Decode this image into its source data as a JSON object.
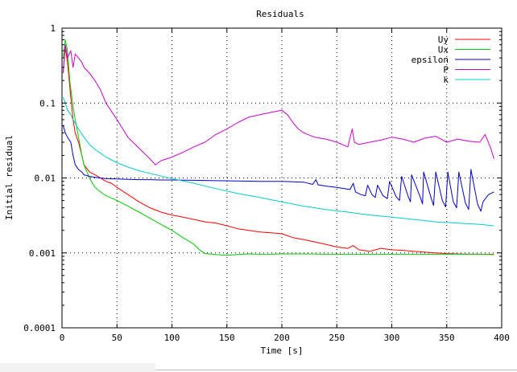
{
  "chart_data": {
    "type": "line",
    "title": "Residuals",
    "xlabel": "Time [s]",
    "ylabel": "Initial residual",
    "yscale": "log",
    "xlim": [
      0,
      400
    ],
    "ylim": [
      0.0001,
      1
    ],
    "xticks": [
      0,
      50,
      100,
      150,
      200,
      250,
      300,
      350,
      400
    ],
    "xtick_labels": [
      "0",
      "50",
      "100",
      "150",
      "200",
      "250",
      "300",
      "350",
      "400"
    ],
    "yticks": [
      1,
      0.1,
      0.01,
      0.001,
      0.0001
    ],
    "ytick_labels": [
      "1",
      "0.1",
      "0.01",
      "0.001",
      "0.0001"
    ],
    "grid": true,
    "legend_position": "top-right",
    "series": [
      {
        "name": "Uy",
        "color": "#ff0000",
        "x": [
          1,
          3,
          5,
          8,
          10,
          12,
          15,
          18,
          20,
          25,
          30,
          35,
          40,
          45,
          50,
          60,
          70,
          80,
          90,
          100,
          110,
          120,
          130,
          140,
          150,
          160,
          170,
          180,
          190,
          200,
          210,
          220,
          230,
          240,
          250,
          260,
          265,
          270,
          280,
          290,
          300,
          310,
          320,
          330,
          340,
          350,
          360,
          370,
          380,
          390,
          393
        ],
        "y": [
          0.25,
          0.55,
          0.35,
          0.12,
          0.06,
          0.04,
          0.03,
          0.02,
          0.015,
          0.012,
          0.011,
          0.01,
          0.009,
          0.0085,
          0.0075,
          0.006,
          0.0048,
          0.004,
          0.0035,
          0.0032,
          0.003,
          0.0028,
          0.0026,
          0.0025,
          0.0023,
          0.0021,
          0.002,
          0.0019,
          0.00185,
          0.0018,
          0.0016,
          0.0015,
          0.0014,
          0.0013,
          0.0012,
          0.00115,
          0.00125,
          0.0011,
          0.00105,
          0.00115,
          0.0011,
          0.00108,
          0.00105,
          0.00102,
          0.001,
          0.00098,
          0.00097,
          0.00096,
          0.00096,
          0.00095,
          0.00095
        ]
      },
      {
        "name": "Ux",
        "color": "#00cc00",
        "x": [
          1,
          3,
          5,
          7,
          10,
          12,
          15,
          18,
          20,
          25,
          30,
          35,
          40,
          50,
          60,
          70,
          80,
          90,
          100,
          110,
          120,
          125,
          130,
          140,
          150,
          160,
          170,
          180,
          190,
          200,
          220,
          240,
          260,
          280,
          300,
          320,
          340,
          360,
          380,
          393
        ],
        "y": [
          0.4,
          0.7,
          0.5,
          0.2,
          0.09,
          0.06,
          0.035,
          0.02,
          0.015,
          0.01,
          0.0075,
          0.0065,
          0.0058,
          0.005,
          0.0042,
          0.0035,
          0.0029,
          0.0024,
          0.002,
          0.0016,
          0.0013,
          0.0011,
          0.00098,
          0.00095,
          0.00093,
          0.00095,
          0.00097,
          0.00096,
          0.00096,
          0.00097,
          0.00097,
          0.00096,
          0.00096,
          0.00096,
          0.00096,
          0.00096,
          0.00096,
          0.00096,
          0.00096,
          0.00096
        ]
      },
      {
        "name": "epsilon",
        "color": "#0000cc",
        "x": [
          1,
          3,
          5,
          8,
          10,
          12,
          15,
          18,
          20,
          25,
          30,
          35,
          40,
          50,
          60,
          70,
          80,
          90,
          100,
          120,
          140,
          160,
          180,
          200,
          210,
          220,
          228,
          231,
          233,
          240,
          250,
          262,
          265,
          267,
          272,
          276,
          278,
          282,
          285,
          287,
          292,
          296,
          298,
          304,
          307,
          309,
          315,
          317,
          318,
          326,
          328,
          329,
          336,
          338,
          340,
          346,
          349,
          351,
          356,
          359,
          361,
          367,
          370,
          372,
          378,
          381,
          383,
          388,
          393
        ],
        "y": [
          0.05,
          0.04,
          0.035,
          0.03,
          0.02,
          0.015,
          0.013,
          0.012,
          0.011,
          0.0105,
          0.0102,
          0.01,
          0.0098,
          0.0097,
          0.0096,
          0.0095,
          0.0095,
          0.0094,
          0.0094,
          0.0093,
          0.0092,
          0.0091,
          0.009,
          0.009,
          0.0089,
          0.0088,
          0.0082,
          0.0095,
          0.0081,
          0.0078,
          0.0075,
          0.007,
          0.0085,
          0.0065,
          0.006,
          0.0058,
          0.008,
          0.006,
          0.0055,
          0.008,
          0.0058,
          0.0053,
          0.009,
          0.0056,
          0.005,
          0.0105,
          0.0056,
          0.0048,
          0.011,
          0.0055,
          0.0045,
          0.012,
          0.0053,
          0.0043,
          0.012,
          0.005,
          0.0041,
          0.012,
          0.0048,
          0.004,
          0.012,
          0.0046,
          0.0038,
          0.013,
          0.0045,
          0.0036,
          0.0048,
          0.006,
          0.0065
        ]
      },
      {
        "name": "P",
        "color": "#cc00cc",
        "x": [
          1,
          3,
          5,
          8,
          10,
          12,
          15,
          18,
          20,
          25,
          30,
          35,
          40,
          50,
          60,
          70,
          80,
          85,
          90,
          100,
          110,
          120,
          130,
          140,
          150,
          160,
          170,
          180,
          190,
          200,
          205,
          210,
          215,
          220,
          230,
          240,
          250,
          260,
          264,
          266,
          270,
          280,
          290,
          300,
          310,
          320,
          330,
          340,
          350,
          360,
          370,
          380,
          385,
          390,
          393
        ],
        "y": [
          0.25,
          0.6,
          0.4,
          0.5,
          0.3,
          0.45,
          0.4,
          0.35,
          0.3,
          0.25,
          0.2,
          0.15,
          0.1,
          0.06,
          0.035,
          0.025,
          0.018,
          0.015,
          0.017,
          0.019,
          0.022,
          0.026,
          0.03,
          0.038,
          0.045,
          0.055,
          0.065,
          0.07,
          0.075,
          0.08,
          0.07,
          0.055,
          0.045,
          0.04,
          0.035,
          0.033,
          0.03,
          0.026,
          0.045,
          0.03,
          0.028,
          0.03,
          0.032,
          0.035,
          0.033,
          0.03,
          0.034,
          0.036,
          0.03,
          0.033,
          0.031,
          0.03,
          0.038,
          0.025,
          0.018
        ]
      },
      {
        "name": "k",
        "color": "#00cccc",
        "x": [
          1,
          3,
          5,
          8,
          10,
          15,
          20,
          25,
          30,
          40,
          50,
          60,
          70,
          80,
          100,
          120,
          140,
          160,
          180,
          200,
          220,
          240,
          260,
          280,
          300,
          320,
          340,
          360,
          380,
          393
        ],
        "y": [
          0.12,
          0.1,
          0.08,
          0.07,
          0.06,
          0.045,
          0.035,
          0.028,
          0.024,
          0.019,
          0.016,
          0.014,
          0.0125,
          0.0115,
          0.0098,
          0.0085,
          0.0072,
          0.0062,
          0.0055,
          0.0048,
          0.0042,
          0.0038,
          0.0035,
          0.0032,
          0.003,
          0.0028,
          0.0026,
          0.0025,
          0.0024,
          0.0023
        ]
      }
    ]
  }
}
